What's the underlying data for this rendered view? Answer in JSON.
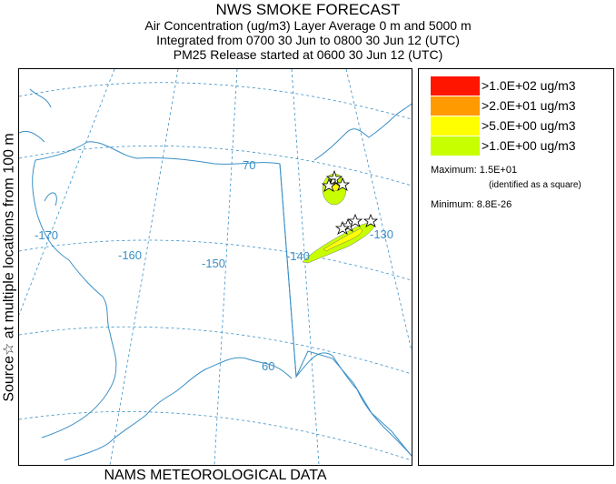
{
  "header": {
    "title": "NWS SMOKE FORECAST",
    "line1": "Air Concentration (ug/m3) Layer Average    0 m and  5000 m",
    "line2": "Integrated from 0700 30 Jun to 0800 30 Jun 12 (UTC)",
    "line3": "PM25 Release started at 0600 30 Jun 12 (UTC)"
  },
  "side_label": "Source☆ at multiple locations  from  100 m",
  "footer_label": "NAMS METEOROLOGICAL DATA",
  "legend": {
    "items": [
      {
        "label": ">1.0E+02 ug/m3",
        "color": "#ff1500"
      },
      {
        "label": ">2.0E+01 ug/m3",
        "color": "#ff9a00"
      },
      {
        "label": ">5.0E+00 ug/m3",
        "color": "#ffff00"
      },
      {
        "label": ">1.0E+00 ug/m3",
        "color": "#c8ff00"
      }
    ],
    "maximum": "Maximum: 1.5E+01",
    "maximum_note": "(identified as a square)",
    "minimum": "Minimum: 8.8E-26"
  },
  "map": {
    "lat_labels": [
      "70",
      "60"
    ],
    "lon_labels": [
      "-170",
      "-160",
      "-150",
      "-140",
      "-130"
    ],
    "colors": {
      "coast": "#3a8fc6",
      "grid": "#3a8fc6",
      "plume_outer": "#c8ff00",
      "plume_inner": "#ffff00"
    }
  }
}
